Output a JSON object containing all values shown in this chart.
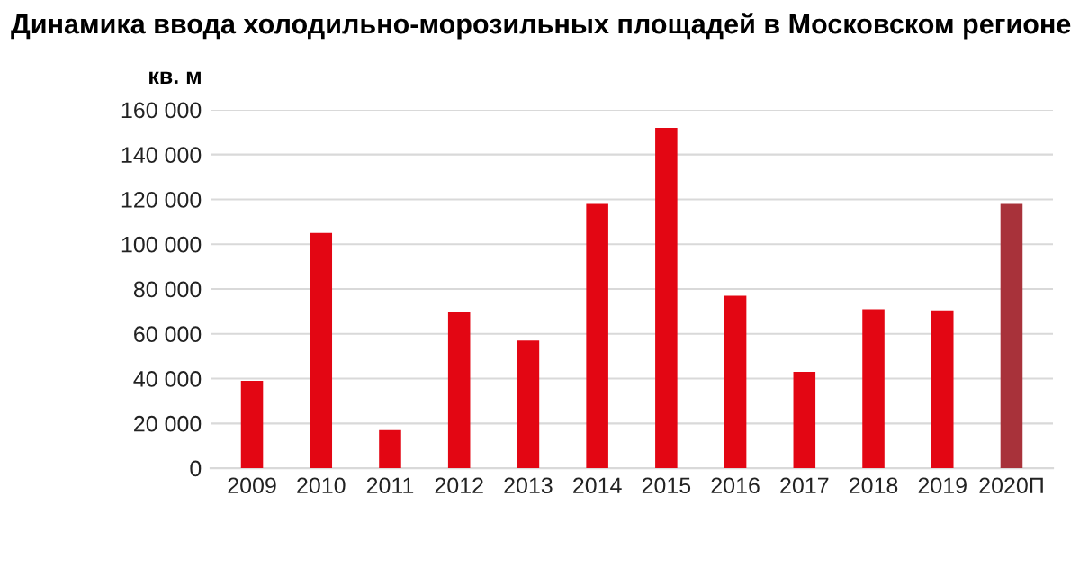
{
  "chart_data": {
    "type": "bar",
    "title": "Динамика ввода холодильно-морозильных площадей в Московском регионе",
    "ylabel": "кв. м",
    "categories": [
      "2009",
      "2010",
      "2011",
      "2012",
      "2013",
      "2014",
      "2015",
      "2016",
      "2017",
      "2018",
      "2019",
      "2020П"
    ],
    "values": [
      39000,
      105000,
      17000,
      69500,
      57000,
      118000,
      152000,
      77000,
      43000,
      71000,
      70500,
      118000
    ],
    "colors": [
      "#e30613",
      "#e30613",
      "#e30613",
      "#e30613",
      "#e30613",
      "#e30613",
      "#e30613",
      "#e30613",
      "#e30613",
      "#e30613",
      "#e30613",
      "#a8323a"
    ],
    "ylim": [
      0,
      160000
    ],
    "yticks": [
      {
        "value": 0,
        "label": "0"
      },
      {
        "value": 20000,
        "label": "20 000"
      },
      {
        "value": 40000,
        "label": "40 000"
      },
      {
        "value": 60000,
        "label": "60 000"
      },
      {
        "value": 80000,
        "label": "80 000"
      },
      {
        "value": 100000,
        "label": "100 000"
      },
      {
        "value": 120000,
        "label": "120 000"
      },
      {
        "value": 140000,
        "label": "140 000"
      },
      {
        "value": 160000,
        "label": "160 000"
      }
    ],
    "grid": "y",
    "legend": false
  }
}
